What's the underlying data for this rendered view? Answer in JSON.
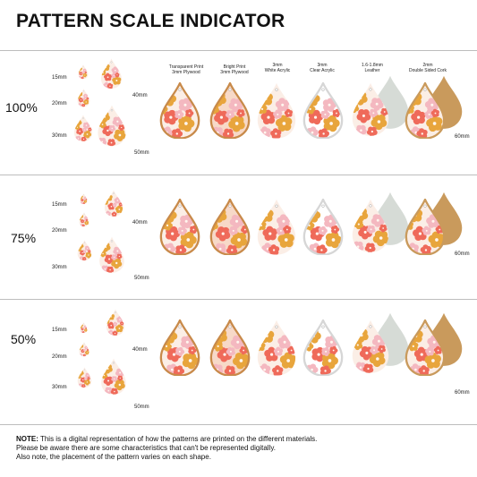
{
  "title": "PATTERN SCALE INDICATOR",
  "materials": [
    {
      "line1": "Transparent Print",
      "line2": "3mm Plywood"
    },
    {
      "line1": "Bright Print",
      "line2": "3mm Plywood"
    },
    {
      "line1": "3mm",
      "line2": "White Acrylic"
    },
    {
      "line1": "3mm",
      "line2": "Clear Acrylic"
    },
    {
      "line1": "1.6-1.8mm",
      "line2": "Leather"
    },
    {
      "line1": "2mm",
      "line2": "Double Sided Cork"
    }
  ],
  "sizes": [
    "15mm",
    "20mm",
    "30mm",
    "40mm",
    "50mm",
    "60mm"
  ],
  "rows": [
    {
      "scale": "100%"
    },
    {
      "scale": "75%"
    },
    {
      "scale": "50%"
    }
  ],
  "note": {
    "label": "NOTE:",
    "line1": "This is a digital representation of how the patterns are printed on the different materials.",
    "line2": "Please be aware there are some characteristics that can't be represented digitally.",
    "line3": "Also note, the placement of the pattern varies on each shape."
  },
  "colors": {
    "orange": "#e8a53c",
    "coral": "#ef6a5a",
    "pink": "#f4b8c0",
    "cream": "#fbeee6",
    "wood": "#c88a4a",
    "leather": "#d6dbd6",
    "cork": "#c99a5c"
  }
}
